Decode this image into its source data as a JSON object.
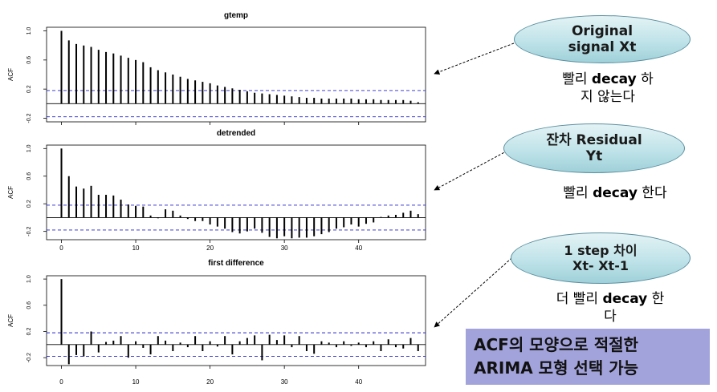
{
  "chart_data": [
    {
      "type": "bar",
      "title": "gtemp",
      "ylabel": "ACF",
      "xlabel": "",
      "ylim": [
        -0.25,
        1.05
      ],
      "xlim": [
        -2,
        49
      ],
      "xticks": [
        0,
        10,
        20,
        30,
        40
      ],
      "yticks": [
        "-0.2",
        "0.2",
        "0.6",
        "1.0"
      ],
      "yticks_values": [
        -0.2,
        0.2,
        0.6,
        1.0
      ],
      "show_xtick_labels": false,
      "conf_band": 0.18,
      "lags": [
        0,
        1,
        2,
        3,
        4,
        5,
        6,
        7,
        8,
        9,
        10,
        11,
        12,
        13,
        14,
        15,
        16,
        17,
        18,
        19,
        20,
        21,
        22,
        23,
        24,
        25,
        26,
        27,
        28,
        29,
        30,
        31,
        32,
        33,
        34,
        35,
        36,
        37,
        38,
        39,
        40,
        41,
        42,
        43,
        44,
        45,
        46,
        47,
        48
      ],
      "values": [
        1.0,
        0.87,
        0.82,
        0.8,
        0.78,
        0.74,
        0.71,
        0.69,
        0.66,
        0.63,
        0.6,
        0.57,
        0.5,
        0.46,
        0.43,
        0.4,
        0.37,
        0.34,
        0.32,
        0.3,
        0.28,
        0.25,
        0.23,
        0.21,
        0.19,
        0.17,
        0.15,
        0.14,
        0.13,
        0.12,
        0.11,
        0.1,
        0.09,
        0.08,
        0.08,
        0.07,
        0.07,
        0.07,
        0.07,
        0.07,
        0.06,
        0.06,
        0.06,
        0.05,
        0.05,
        0.05,
        0.05,
        0.04,
        0.02
      ]
    },
    {
      "type": "bar",
      "title": "detrended",
      "ylabel": "ACF",
      "xlabel": "",
      "ylim": [
        -0.32,
        1.05
      ],
      "xlim": [
        -2,
        49
      ],
      "xticks": [
        0,
        10,
        20,
        30,
        40
      ],
      "yticks": [
        "-0.2",
        "0.2",
        "0.6",
        "1.0"
      ],
      "yticks_values": [
        -0.2,
        0.2,
        0.6,
        1.0
      ],
      "show_xtick_labels": true,
      "conf_band": 0.18,
      "lags": [
        0,
        1,
        2,
        3,
        4,
        5,
        6,
        7,
        8,
        9,
        10,
        11,
        12,
        13,
        14,
        15,
        16,
        17,
        18,
        19,
        20,
        21,
        22,
        23,
        24,
        25,
        26,
        27,
        28,
        29,
        30,
        31,
        32,
        33,
        34,
        35,
        36,
        37,
        38,
        39,
        40,
        41,
        42,
        43,
        44,
        45,
        46,
        47,
        48
      ],
      "values": [
        1.0,
        0.6,
        0.45,
        0.42,
        0.46,
        0.33,
        0.33,
        0.32,
        0.26,
        0.19,
        0.17,
        0.16,
        0.03,
        -0.01,
        0.12,
        0.1,
        0.03,
        -0.02,
        -0.05,
        -0.05,
        -0.1,
        -0.13,
        -0.16,
        -0.21,
        -0.23,
        -0.2,
        -0.16,
        -0.22,
        -0.28,
        -0.3,
        -0.27,
        -0.3,
        -0.29,
        -0.29,
        -0.27,
        -0.24,
        -0.21,
        -0.16,
        -0.14,
        -0.1,
        -0.13,
        -0.09,
        -0.07,
        0.01,
        0.03,
        0.04,
        0.07,
        0.1,
        0.05
      ]
    },
    {
      "type": "bar",
      "title": "first difference",
      "ylabel": "ACF",
      "xlabel": "",
      "ylim": [
        -0.32,
        1.05
      ],
      "xlim": [
        -2,
        49
      ],
      "xticks": [
        0,
        10,
        20,
        30,
        40
      ],
      "yticks": [
        "-0.2",
        "0.2",
        "0.6",
        "1.0"
      ],
      "yticks_values": [
        -0.2,
        0.2,
        0.6,
        1.0
      ],
      "show_xtick_labels": true,
      "conf_band": 0.18,
      "lags": [
        0,
        1,
        2,
        3,
        4,
        5,
        6,
        7,
        8,
        9,
        10,
        11,
        12,
        13,
        14,
        15,
        16,
        17,
        18,
        19,
        20,
        21,
        22,
        23,
        24,
        25,
        26,
        27,
        28,
        29,
        30,
        31,
        32,
        33,
        34,
        35,
        36,
        37,
        38,
        39,
        40,
        41,
        42,
        43,
        44,
        45,
        46,
        47,
        48
      ],
      "values": [
        1.0,
        -0.3,
        -0.16,
        -0.18,
        0.2,
        -0.12,
        0.04,
        0.06,
        0.13,
        -0.2,
        0.05,
        -0.05,
        -0.15,
        0.13,
        0.06,
        -0.1,
        0.03,
        -0.04,
        0.13,
        -0.1,
        0.05,
        -0.03,
        0.13,
        -0.15,
        0.05,
        0.1,
        0.14,
        -0.24,
        0.15,
        0.07,
        0.14,
        -0.04,
        0.13,
        -0.1,
        -0.14,
        0.05,
        0.03,
        -0.04,
        0.05,
        -0.02,
        0.03,
        -0.04,
        0.05,
        -0.1,
        0.08,
        -0.04,
        -0.06,
        0.1,
        -0.1
      ]
    }
  ],
  "annotations": [
    {
      "lines": [
        "Original",
        "signal Xt"
      ]
    },
    {
      "lines": [
        "잔차 Residual",
        "Yt"
      ]
    },
    {
      "lines": [
        "1 step 차이",
        "Xt- Xt-1"
      ]
    }
  ],
  "notes": [
    {
      "line1_bold": "빨리 ",
      "line1_word": "decay",
      "line1_rest": " 하",
      "line2": "지 않는다"
    },
    {
      "line1_bold": "빨리 ",
      "line1_word": "decay",
      "line1_rest": " 한다",
      "line2": ""
    },
    {
      "line1_bold": "더 빨리 ",
      "line1_word": "decay",
      "line1_rest": " 한",
      "line2": "다"
    }
  ],
  "summary": {
    "line1": "ACF의 모양으로 적절한",
    "line2": "ARIMA 모형 선택 가능"
  },
  "colors": {
    "bar": "#000000",
    "conf_line": "#2222cc",
    "ellipse_fill": "#bfe3e9",
    "ellipse_border": "#5a8fa0",
    "summary_fill": "#a3a3dc"
  }
}
